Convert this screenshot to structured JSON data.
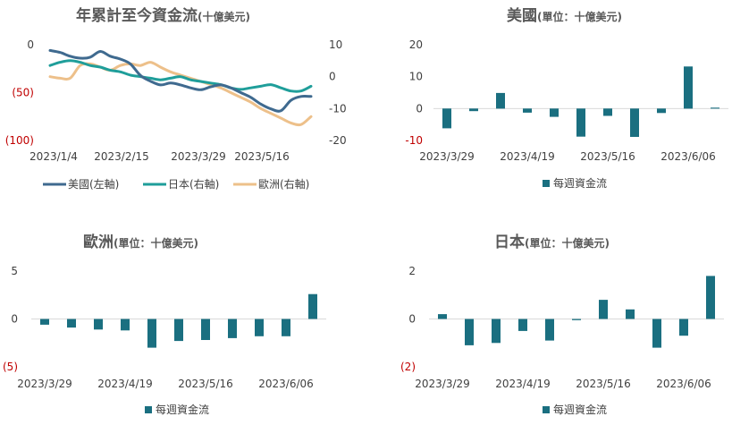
{
  "chart_data": [
    {
      "type": "line",
      "title": "年累計至今資金流",
      "title_suffix": "(十億美元)",
      "x_ticks": [
        "2023/1/4",
        "2023/2/15",
        "2023/3/29",
        "2023/5/16"
      ],
      "y_left_ticks": [
        "0",
        "(50)",
        "(100)"
      ],
      "y_left_lim": [
        -100,
        0
      ],
      "y_right_ticks": [
        "10",
        "0",
        "-10",
        "-20"
      ],
      "y_right_lim": [
        -20,
        10
      ],
      "series": [
        {
          "name": "美國(左軸)",
          "axis": "left",
          "color": "#3f6a8f",
          "values": [
            -6,
            -8,
            -12,
            -14,
            -13,
            -7,
            -12,
            -15,
            -20,
            -32,
            -38,
            -42,
            -40,
            -42,
            -45,
            -47,
            -44,
            -42,
            -45,
            -50,
            -55,
            -62,
            -67,
            -69,
            -58,
            -54,
            -54
          ]
        },
        {
          "name": "日本(右軸)",
          "axis": "right",
          "color": "#1f9e9a",
          "values": [
            3.5,
            4.5,
            5,
            4.5,
            3.5,
            3,
            2,
            1.5,
            0.5,
            0,
            -0.5,
            -1,
            -0.5,
            0,
            -1,
            -1.5,
            -2,
            -2.5,
            -3.5,
            -4,
            -3.5,
            -3,
            -2.5,
            -3.5,
            -4.5,
            -4.5,
            -3
          ]
        },
        {
          "name": "歐洲(右軸)",
          "axis": "right",
          "color": "#edc08a",
          "values": [
            0,
            -0.5,
            -0.5,
            3.5,
            4,
            3,
            2,
            3.5,
            4,
            3.5,
            4.5,
            3,
            1.5,
            0.5,
            -0.5,
            -1.5,
            -2.5,
            -3.5,
            -5,
            -6.5,
            -8,
            -10,
            -11.5,
            -13,
            -14.5,
            -15,
            -12.5
          ]
        }
      ]
    },
    {
      "type": "bar",
      "title": "美國",
      "title_suffix": "(單位：十億美元)",
      "x_ticks": [
        "2023/3/29",
        "2023/4/19",
        "2023/5/16",
        "2023/6/06"
      ],
      "y_ticks": [
        "20",
        "10",
        "0",
        "-10"
      ],
      "ylim": [
        -10,
        20
      ],
      "legend": "每週資金流",
      "color": "#1a6f80",
      "values": [
        -6.2,
        -0.8,
        4.9,
        -1.3,
        -2.6,
        -8.8,
        -2.3,
        -8.9,
        -1.4,
        13.2,
        0.3
      ]
    },
    {
      "type": "bar",
      "title": "歐洲",
      "title_suffix": "(單位：十億美元)",
      "x_ticks": [
        "2023/3/29",
        "2023/4/19",
        "2023/5/16",
        "2023/6/06"
      ],
      "y_ticks": [
        "5",
        "0",
        "(5)"
      ],
      "ylim": [
        -5,
        5
      ],
      "legend": "每週資金流",
      "color": "#1a6f80",
      "values": [
        -0.6,
        -0.9,
        -1.1,
        -1.2,
        -3.0,
        -2.3,
        -2.2,
        -2.0,
        -1.8,
        -1.8,
        2.6
      ]
    },
    {
      "type": "bar",
      "title": "日本",
      "title_suffix": "(單位：十億美元)",
      "x_ticks": [
        "2023/3/29",
        "2023/4/19",
        "2023/5/16",
        "2023/6/06"
      ],
      "y_ticks": [
        "2",
        "0",
        "(2)"
      ],
      "ylim": [
        -2,
        2
      ],
      "legend": "每週資金流",
      "color": "#1a6f80",
      "values": [
        0.2,
        -1.1,
        -1.0,
        -0.5,
        -0.9,
        -0.05,
        0.8,
        0.4,
        -1.2,
        -0.7,
        1.8
      ]
    }
  ]
}
